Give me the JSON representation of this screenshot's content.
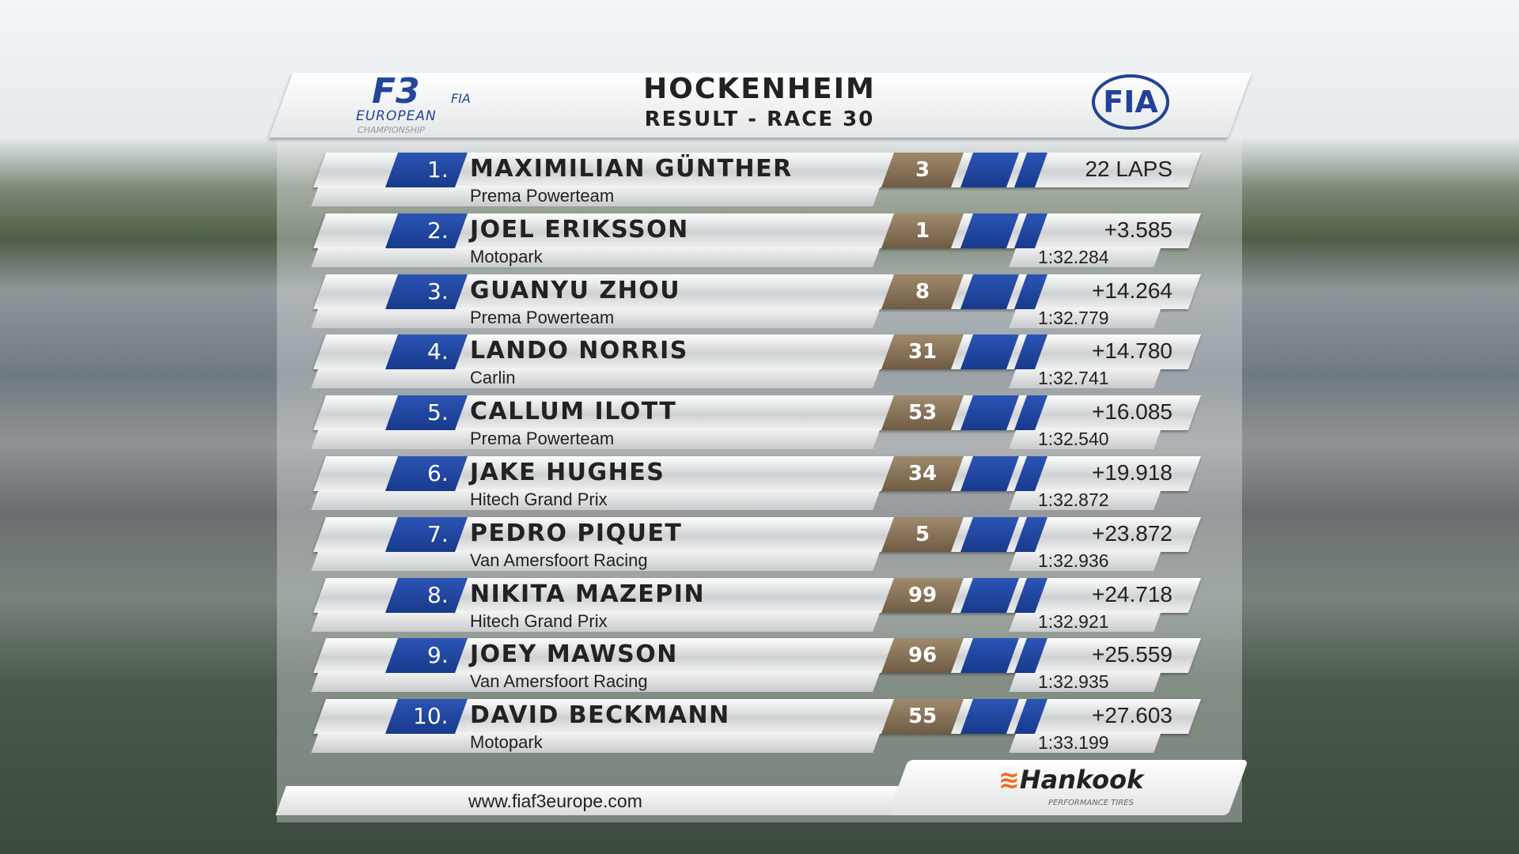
{
  "header": {
    "title": "HOCKENHEIM",
    "subtitle": "RESULT - RACE 30",
    "series_logo": {
      "main": "F3",
      "fia": "FIA",
      "line1": "EUROPEAN",
      "line2": "CHAMPIONSHIP"
    },
    "fia_logo": "FIA"
  },
  "colors": {
    "position_blue": "#2345a5",
    "number_bronze": "#8a7558",
    "bar_silver": "#e0e2e4"
  },
  "results": [
    {
      "pos": "1.",
      "driver": "MAXIMILIAN GÜNTHER",
      "team": "Prema Powerteam",
      "number": "3",
      "gap": "22 LAPS",
      "best_lap": ""
    },
    {
      "pos": "2.",
      "driver": "JOEL ERIKSSON",
      "team": "Motopark",
      "number": "1",
      "gap": "+3.585",
      "best_lap": "1:32.284"
    },
    {
      "pos": "3.",
      "driver": "GUANYU ZHOU",
      "team": "Prema Powerteam",
      "number": "8",
      "gap": "+14.264",
      "best_lap": "1:32.779"
    },
    {
      "pos": "4.",
      "driver": "LANDO NORRIS",
      "team": "Carlin",
      "number": "31",
      "gap": "+14.780",
      "best_lap": "1:32.741"
    },
    {
      "pos": "5.",
      "driver": "CALLUM ILOTT",
      "team": "Prema Powerteam",
      "number": "53",
      "gap": "+16.085",
      "best_lap": "1:32.540"
    },
    {
      "pos": "6.",
      "driver": "JAKE HUGHES",
      "team": "Hitech Grand Prix",
      "number": "34",
      "gap": "+19.918",
      "best_lap": "1:32.872"
    },
    {
      "pos": "7.",
      "driver": "PEDRO PIQUET",
      "team": "Van Amersfoort Racing",
      "number": "5",
      "gap": "+23.872",
      "best_lap": "1:32.936"
    },
    {
      "pos": "8.",
      "driver": "NIKITA MAZEPIN",
      "team": "Hitech Grand Prix",
      "number": "99",
      "gap": "+24.718",
      "best_lap": "1:32.921"
    },
    {
      "pos": "9.",
      "driver": "JOEY MAWSON",
      "team": "Van Amersfoort Racing",
      "number": "96",
      "gap": "+25.559",
      "best_lap": "1:32.935"
    },
    {
      "pos": "10.",
      "driver": "DAVID BECKMANN",
      "team": "Motopark",
      "number": "55",
      "gap": "+27.603",
      "best_lap": "1:33.199"
    }
  ],
  "footer": {
    "url": "www.fiaf3europe.com",
    "sponsor": "Hankook",
    "sponsor_tagline": "PERFORMANCE TIRES"
  }
}
